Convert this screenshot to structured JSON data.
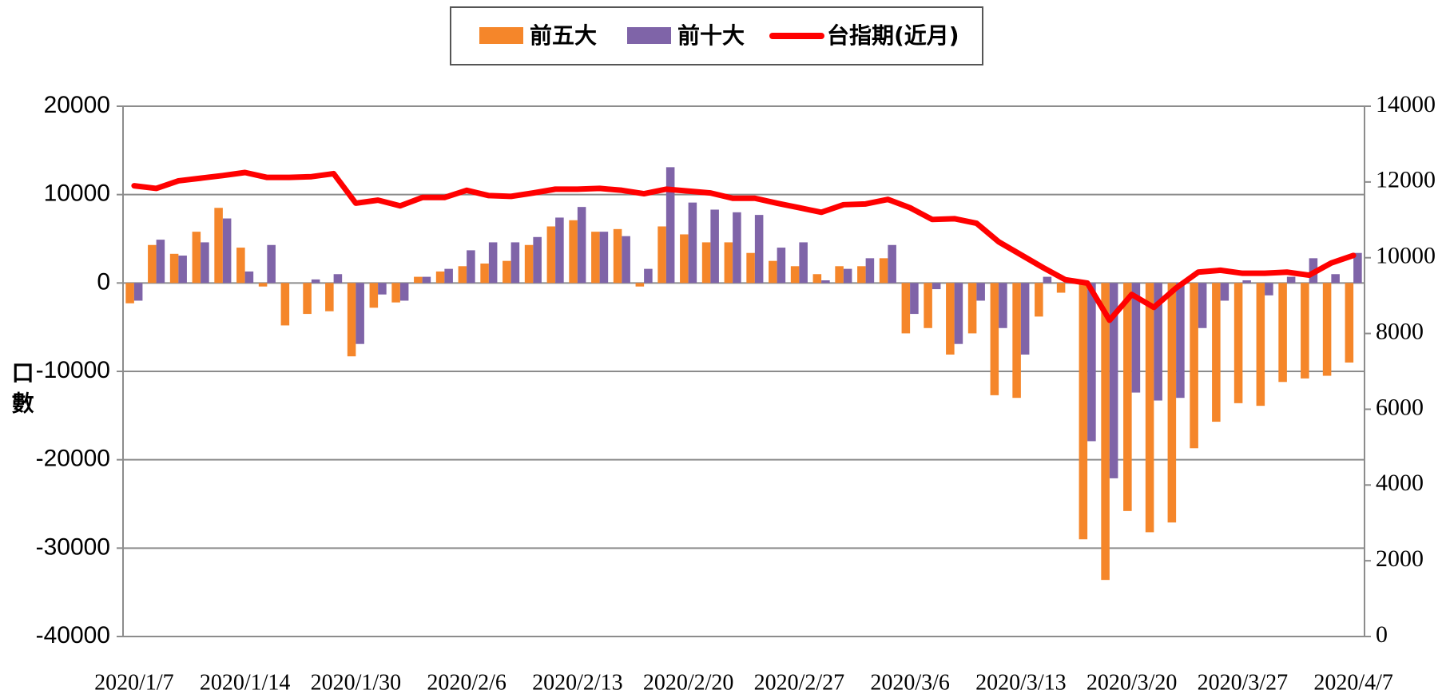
{
  "chart_data": {
    "type": "bar_line",
    "y_label": "口數",
    "categories": [
      "2020/1/7",
      null,
      null,
      null,
      null,
      "2020/1/14",
      null,
      null,
      null,
      null,
      "2020/1/30",
      null,
      null,
      null,
      null,
      "2020/2/6",
      null,
      null,
      null,
      null,
      "2020/2/13",
      null,
      null,
      null,
      null,
      "2020/2/20",
      null,
      null,
      null,
      null,
      "2020/2/27",
      null,
      null,
      null,
      null,
      "2020/3/6",
      null,
      null,
      null,
      null,
      "2020/3/13",
      null,
      null,
      null,
      null,
      "2020/3/20",
      null,
      null,
      null,
      null,
      "2020/3/27",
      null,
      null,
      null,
      null,
      "2020/4/7"
    ],
    "series": [
      {
        "name": "前五大",
        "color": "#f5862a",
        "type": "bar",
        "values": [
          -2300,
          4300,
          3300,
          5800,
          8500,
          4000,
          -400,
          -4800,
          -3500,
          -3200,
          -8300,
          -2800,
          -2200,
          700,
          1300,
          1900,
          2200,
          2500,
          4300,
          6400,
          7100,
          5800,
          6100,
          -400,
          6400,
          5500,
          4600,
          4600,
          3400,
          2500,
          1900,
          1000,
          1900,
          1900,
          2800,
          -5700,
          -5100,
          -8100,
          -5700,
          -12700,
          -13000,
          -3800,
          -1100,
          -29000,
          -33600,
          -25800,
          -28200,
          -27100,
          -18700,
          -15700,
          -13600,
          -13900,
          -11200,
          -10800,
          -10500,
          -9000
        ]
      },
      {
        "name": "前十大",
        "color": "#7f64a8",
        "type": "bar",
        "values": [
          -2000,
          4900,
          3100,
          4600,
          7300,
          1300,
          4300,
          0,
          400,
          1000,
          -6900,
          -1300,
          -2000,
          700,
          1600,
          3700,
          4600,
          4600,
          5200,
          7400,
          8600,
          5800,
          5300,
          1600,
          13100,
          9100,
          8300,
          8000,
          7700,
          4000,
          4600,
          300,
          1600,
          2800,
          4300,
          -3500,
          -700,
          -6900,
          -2000,
          -5100,
          -8100,
          700,
          0,
          -17900,
          -22100,
          -12400,
          -13300,
          -13000,
          -5100,
          -2000,
          300,
          -1400,
          700,
          2800,
          1000,
          3400
        ]
      },
      {
        "name": "台指期(近月)",
        "color": "#ff0000",
        "type": "line",
        "axis": "y2",
        "values": [
          11900,
          11830,
          12030,
          12100,
          12170,
          12250,
          12120,
          12120,
          12140,
          12220,
          11440,
          11520,
          11370,
          11590,
          11590,
          11780,
          11640,
          11620,
          11710,
          11810,
          11810,
          11830,
          11780,
          11690,
          11810,
          11760,
          11710,
          11570,
          11570,
          11440,
          11320,
          11200,
          11400,
          11420,
          11540,
          11320,
          11010,
          11030,
          10910,
          10420,
          10080,
          9740,
          9420,
          9330,
          8350,
          9030,
          8690,
          9200,
          9620,
          9670,
          9590,
          9590,
          9620,
          9540,
          9860,
          10060
        ]
      }
    ],
    "ylim": [
      -40000,
      20000
    ],
    "yticks": [
      -40000,
      -30000,
      -20000,
      -10000,
      0,
      10000,
      20000
    ],
    "y2lim": [
      0,
      14000
    ],
    "y2ticks": [
      0,
      2000,
      4000,
      6000,
      8000,
      10000,
      12000,
      14000
    ],
    "grid": true,
    "legend": "top"
  }
}
